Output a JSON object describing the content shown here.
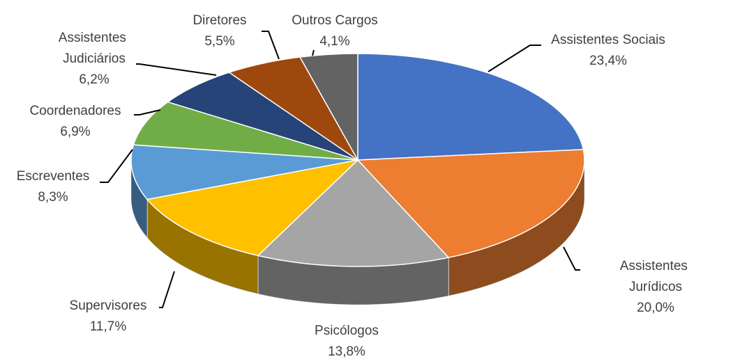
{
  "chart_data": {
    "type": "pie",
    "categories": [
      "Assistentes Sociais",
      "Assistentes Jurídicos",
      "Psicólogos",
      "Supervisores",
      "Escreventes",
      "Coordenadores",
      "Assistentes Judiciários",
      "Diretores",
      "Outros Cargos"
    ],
    "values": [
      23.4,
      20.0,
      13.8,
      11.7,
      8.3,
      6.9,
      6.2,
      5.5,
      4.1
    ],
    "value_labels": [
      "23,4%",
      "20,0%",
      "13,8%",
      "11,7%",
      "8,3%",
      "6,9%",
      "6,2%",
      "5,5%",
      "4,1%"
    ],
    "colors": [
      "#4472c4",
      "#ed7d31",
      "#a5a5a5",
      "#ffc000",
      "#5b9bd5",
      "#70ad47",
      "#264478",
      "#9e480e",
      "#636363"
    ]
  }
}
